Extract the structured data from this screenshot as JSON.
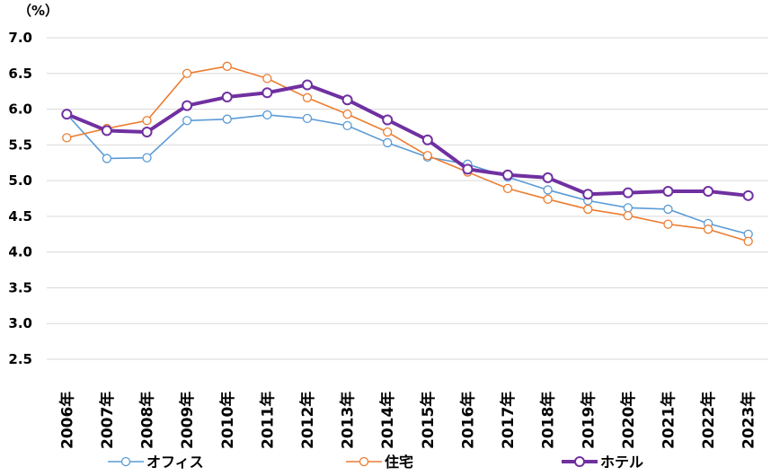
{
  "chart_data": {
    "type": "line",
    "unit_label": "（%）",
    "categories": [
      "2006年",
      "2007年",
      "2008年",
      "2009年",
      "2010年",
      "2011年",
      "2012年",
      "2013年",
      "2014年",
      "2015年",
      "2016年",
      "2017年",
      "2018年",
      "2019年",
      "2020年",
      "2021年",
      "2022年",
      "2023年"
    ],
    "ylim": [
      2.5,
      7.0
    ],
    "y_ticks": [
      "2.5",
      "3.0",
      "3.5",
      "4.0",
      "4.5",
      "5.0",
      "5.5",
      "6.0",
      "6.5",
      "7.0"
    ],
    "grid": true,
    "legend_position": "bottom",
    "series": [
      {
        "name": "オフィス",
        "color": "#5b9bd5",
        "values": [
          5.93,
          5.31,
          5.32,
          5.84,
          5.86,
          5.92,
          5.87,
          5.77,
          5.53,
          5.33,
          5.23,
          5.05,
          4.87,
          4.72,
          4.62,
          4.6,
          4.4,
          4.25
        ]
      },
      {
        "name": "住宅",
        "color": "#ed7d31",
        "values": [
          5.6,
          5.73,
          5.84,
          6.5,
          6.6,
          6.43,
          6.16,
          5.93,
          5.68,
          5.35,
          5.12,
          4.89,
          4.74,
          4.6,
          4.51,
          4.39,
          4.32,
          4.15
        ]
      },
      {
        "name": "ホテル",
        "color": "#7030a0",
        "values": [
          5.93,
          5.7,
          5.68,
          6.05,
          6.17,
          6.23,
          6.34,
          6.13,
          5.85,
          5.57,
          5.16,
          5.08,
          5.04,
          4.81,
          4.83,
          4.85,
          4.85,
          4.79
        ]
      }
    ]
  }
}
